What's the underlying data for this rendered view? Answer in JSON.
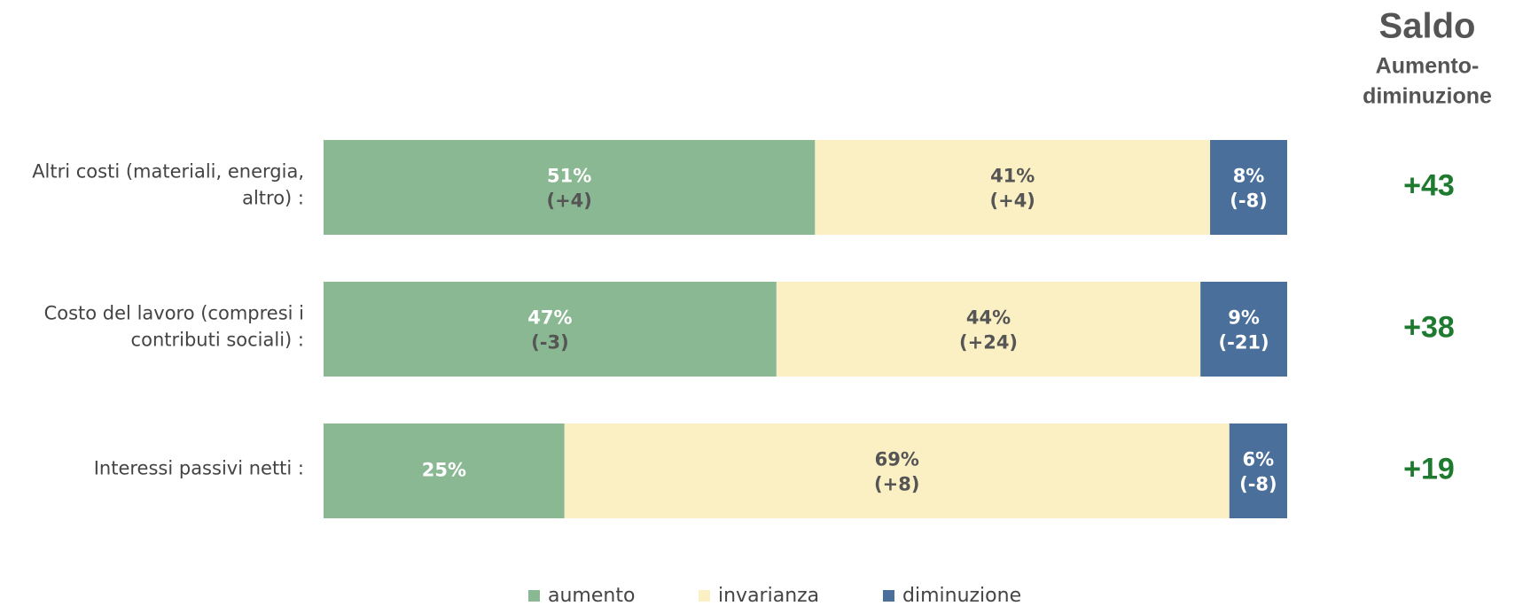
{
  "chart_data": {
    "type": "stacked-bar",
    "categories": [
      [
        "Altri costi (materiali, energia,",
        "altro) :"
      ],
      [
        "Costo del lavoro (compresi i",
        "contributi sociali) :"
      ],
      [
        "Interessi passivi netti :"
      ]
    ],
    "xlim": [
      0,
      100
    ],
    "series": [
      {
        "name": "aumento",
        "color": "#8ab893",
        "values": [
          51,
          47,
          25
        ],
        "value_labels": [
          "51%",
          "47%",
          "25%"
        ],
        "change_labels": [
          "(+4)",
          "(-3)",
          null
        ]
      },
      {
        "name": "invarianza",
        "color": "#faf0c3",
        "values": [
          41,
          44,
          69
        ],
        "value_labels": [
          "41%",
          "44%",
          "69%"
        ],
        "change_labels": [
          "(+4)",
          "(+24)",
          "(+8)"
        ]
      },
      {
        "name": "diminuzione",
        "color": "#4a6f9b",
        "values": [
          8,
          9,
          6
        ],
        "value_labels": [
          "8%",
          "9%",
          "6%"
        ],
        "change_labels": [
          "(-8)",
          "(-21)",
          "(-8)"
        ]
      }
    ],
    "balance": {
      "title": "Saldo",
      "subtitle": [
        "Aumento-",
        "diminuzione"
      ],
      "color": "#1e7a2e",
      "values": [
        43,
        38,
        19
      ],
      "value_labels": [
        "+43",
        "+38",
        "+19"
      ]
    },
    "legend": "bottom"
  }
}
